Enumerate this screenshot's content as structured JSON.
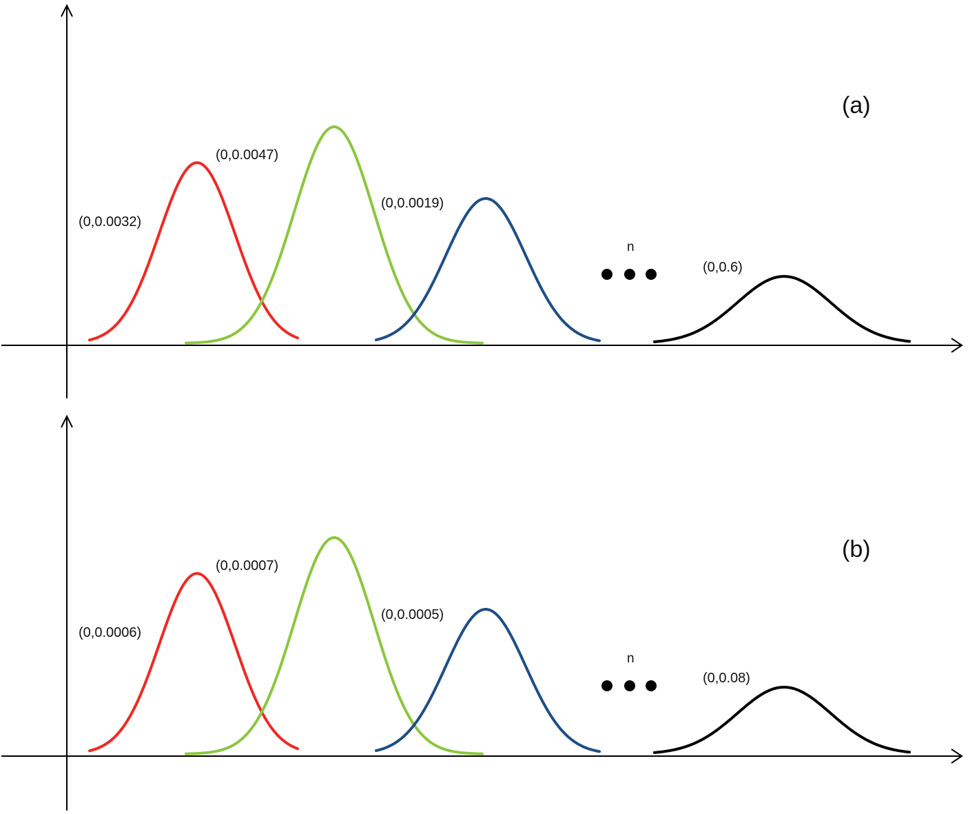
{
  "panels": [
    {
      "id": "a",
      "panel_label": "(a)",
      "ellipsis_label": "n",
      "curves": [
        {
          "label": "(0,0.0032)",
          "color": "#ee2a24"
        },
        {
          "label": "(0,0.0047)",
          "color": "#8cc63f"
        },
        {
          "label": "(0,0.0019)",
          "color": "#1f4e85"
        },
        {
          "label": "(0,0.6)",
          "color": "#000000"
        }
      ]
    },
    {
      "id": "b",
      "panel_label": "(b)",
      "ellipsis_label": "n",
      "curves": [
        {
          "label": "(0,0.0006)",
          "color": "#ee2a24"
        },
        {
          "label": "(0,0.0007)",
          "color": "#8cc63f"
        },
        {
          "label": "(0,0.0005)",
          "color": "#1f4e85"
        },
        {
          "label": "(0,0.08)",
          "color": "#000000"
        }
      ]
    }
  ]
}
